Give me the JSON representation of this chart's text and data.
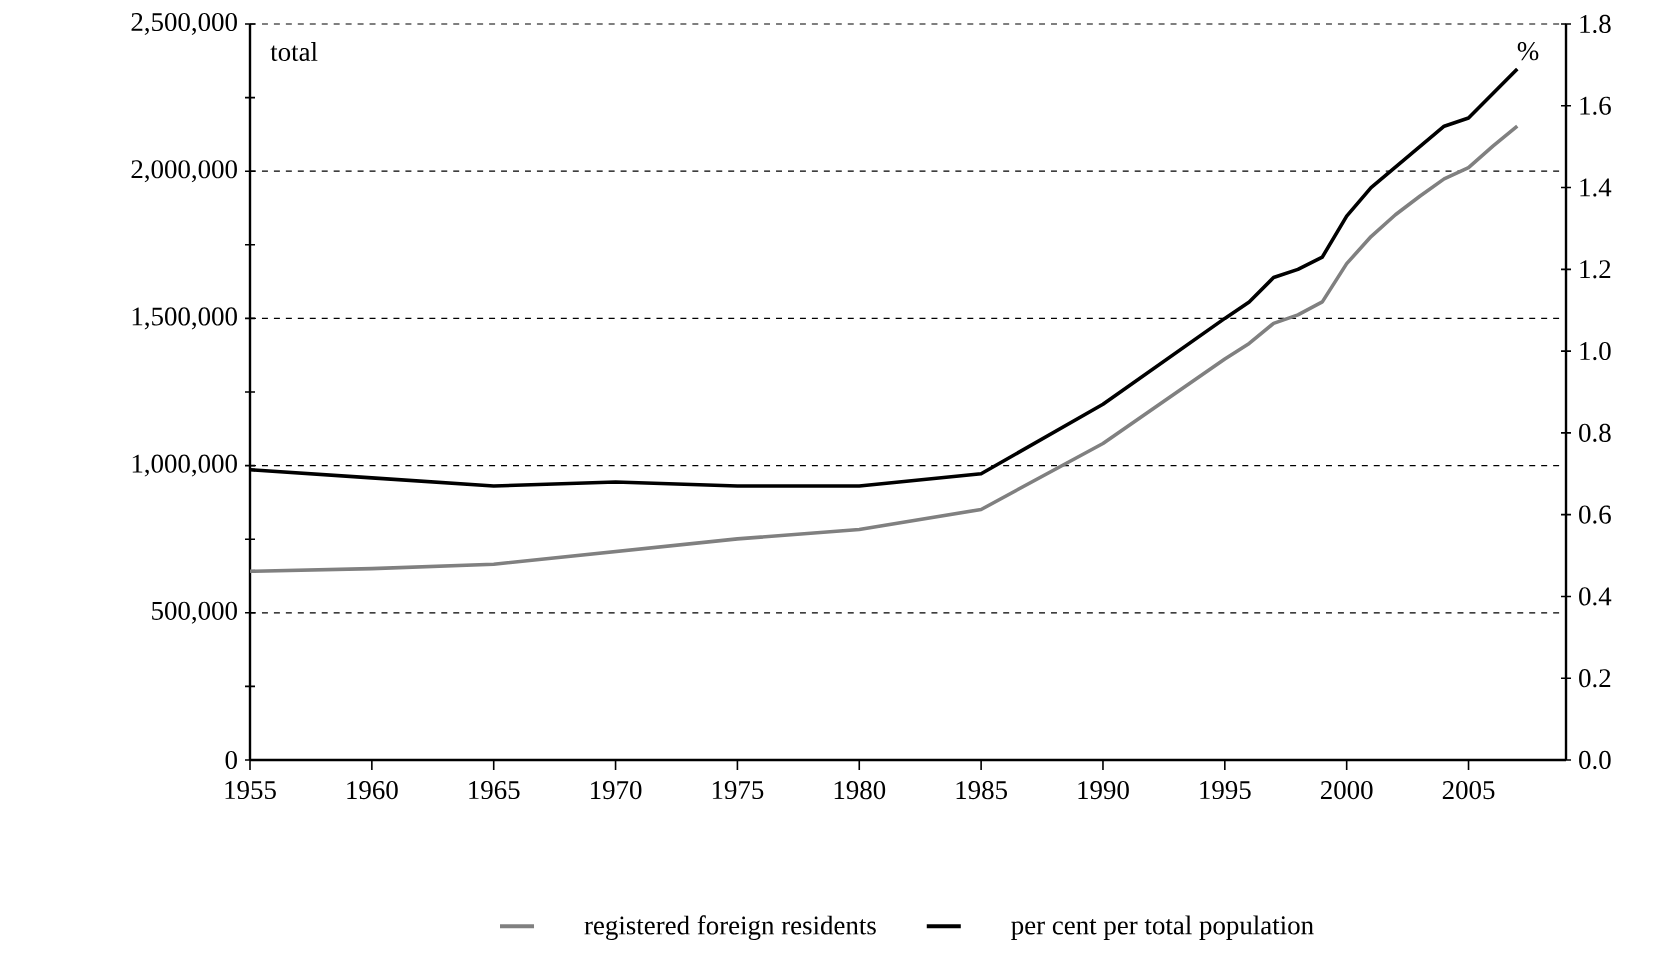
{
  "chart_data": {
    "type": "line",
    "ylabel": "total",
    "y2label": "%",
    "x": [
      1955,
      1960,
      1965,
      1970,
      1975,
      1980,
      1985,
      1990,
      1995,
      1996,
      1997,
      1998,
      1999,
      2000,
      2001,
      2002,
      2003,
      2004,
      2005,
      2006,
      2007
    ],
    "series": [
      {
        "name": "registered foreign residents",
        "color": "#808080",
        "values": [
          641000,
          650000,
          665000,
          708000,
          751000,
          783000,
          851000,
          1075000,
          1362000,
          1415000,
          1483000,
          1512000,
          1556000,
          1686000,
          1778000,
          1852000,
          1915000,
          1974000,
          2012000,
          2085000,
          2153000
        ]
      },
      {
        "name": "per cent per total population",
        "color": "#000000",
        "axis": "y2",
        "values": [
          0.71,
          0.69,
          0.67,
          0.68,
          0.67,
          0.67,
          0.7,
          0.87,
          1.08,
          1.12,
          1.18,
          1.2,
          1.23,
          1.33,
          1.4,
          1.45,
          1.5,
          1.55,
          1.57,
          1.63,
          1.69
        ]
      }
    ],
    "xlim": [
      1955,
      2009
    ],
    "xticks": [
      1955,
      1960,
      1965,
      1970,
      1975,
      1980,
      1985,
      1990,
      1995,
      2000,
      2005
    ],
    "ylim": [
      0,
      2500000
    ],
    "yticks": [
      0,
      {
        "value": 250000,
        "label": null
      },
      {
        "value": 500000,
        "label": "500,000"
      },
      {
        "value": 750000,
        "label": null
      },
      {
        "value": 1000000,
        "label": "1,000,000"
      },
      {
        "value": 1250000,
        "label": null
      },
      {
        "value": 1500000,
        "label": "1,500,000"
      },
      {
        "value": 1750000,
        "label": null
      },
      {
        "value": 2000000,
        "label": "2,000,000"
      },
      {
        "value": 2250000,
        "label": null
      },
      {
        "value": 2500000,
        "label": "2,500,000"
      }
    ],
    "y2lim": [
      0,
      1.8
    ],
    "y2ticks": [
      {
        "value": 0,
        "label": "0.0"
      },
      0.2,
      0.4,
      0.6,
      0.8,
      {
        "value": 1.0,
        "label": "1.0"
      },
      1.2,
      1.4,
      1.6,
      1.8
    ],
    "grid": "y",
    "legend": "bottom"
  }
}
